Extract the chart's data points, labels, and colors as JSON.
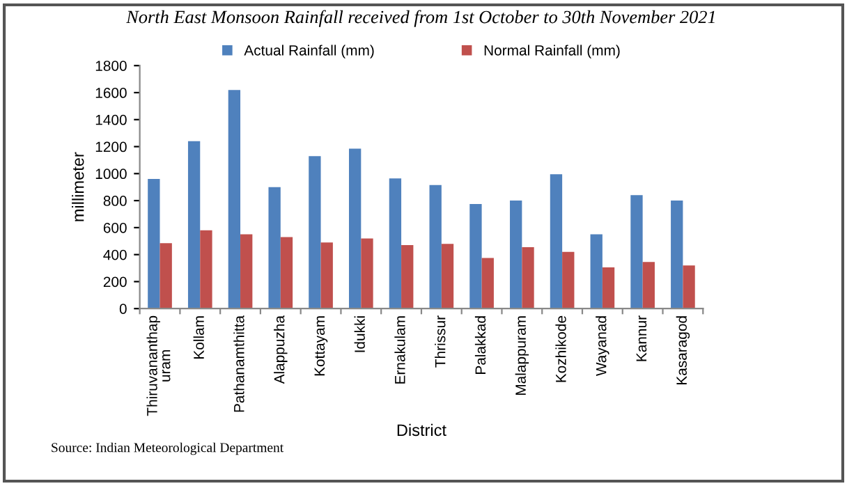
{
  "chart_data": {
    "type": "bar",
    "title": "North East Monsoon Rainfall received from 1st October to 30th November 2021",
    "xlabel": "District",
    "ylabel": "millimeter",
    "categories": [
      "Thiruvananthap\nuram",
      "Kollam",
      "Pathanamthitta",
      "Alappuzha",
      "Kottayam",
      "Idukki",
      "Ernakulam",
      "Thrissur",
      "Palakkad",
      "Malappuram",
      "Kozhikode",
      "Wayanad",
      "Kannur",
      "Kasaragod"
    ],
    "series": [
      {
        "name": "Actual Rainfall (mm)",
        "color": "#4f81bd",
        "values": [
          960,
          1240,
          1620,
          900,
          1130,
          1185,
          965,
          915,
          775,
          800,
          995,
          550,
          840,
          800
        ]
      },
      {
        "name": "Normal Rainfall (mm)",
        "color": "#c0504d",
        "values": [
          485,
          580,
          550,
          530,
          490,
          520,
          470,
          480,
          375,
          455,
          420,
          305,
          345,
          320
        ]
      }
    ],
    "ylim": [
      0,
      1800
    ],
    "yticks": [
      0,
      200,
      400,
      600,
      800,
      1000,
      1200,
      1400,
      1600,
      1800
    ],
    "grid": false,
    "legend": "top",
    "annotations": [
      "Source: Indian Meteorological Department"
    ]
  }
}
